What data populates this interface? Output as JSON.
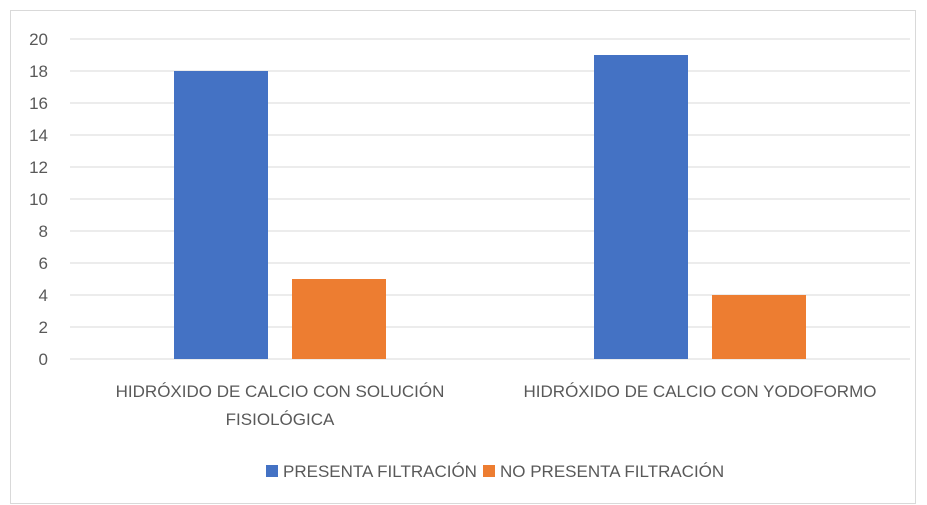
{
  "chart_data": {
    "type": "bar",
    "title": "",
    "xlabel": "",
    "ylabel": "",
    "ylim": [
      0,
      20
    ],
    "yticks": [
      0,
      2,
      4,
      6,
      8,
      10,
      12,
      14,
      16,
      18,
      20
    ],
    "grid": true,
    "legend_position": "bottom",
    "categories": [
      [
        "HIDRÓXIDO DE CALCIO CON SOLUCIÓN",
        "FISIOLÓGICA"
      ],
      [
        "HIDRÓXIDO DE CALCIO CON YODOFORMO"
      ]
    ],
    "series": [
      {
        "name": "PRESENTA FILTRACIÓN",
        "color": "#4472c4",
        "values": [
          18,
          19
        ]
      },
      {
        "name": "NO PRESENTA FILTRACIÓN",
        "color": "#ed7d31",
        "values": [
          5,
          4
        ]
      }
    ]
  }
}
